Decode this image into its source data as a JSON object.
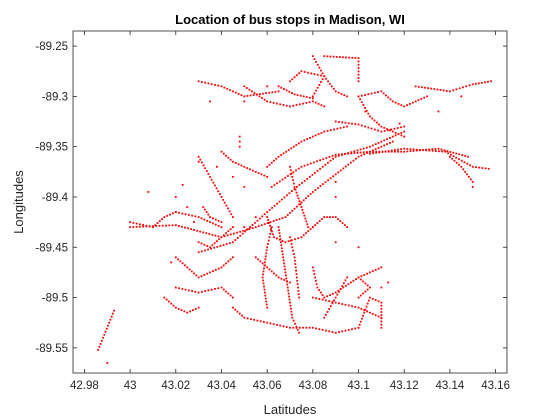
{
  "chart_data": {
    "type": "scatter",
    "title": "Location of bus stops in Madison, WI",
    "xlabel": "Latitudes",
    "ylabel": "Longitudes",
    "xlim": [
      42.975,
      43.165
    ],
    "ylim": [
      -89.575,
      -89.235
    ],
    "x_ticks": [
      42.98,
      43.0,
      43.02,
      43.04,
      43.06,
      43.08,
      43.1,
      43.12,
      43.14,
      43.16
    ],
    "x_tick_labels": [
      "42.98",
      "43",
      "43.02",
      "43.04",
      "43.06",
      "43.08",
      "43.1",
      "43.12",
      "43.14",
      "43.16"
    ],
    "y_ticks": [
      -89.25,
      -89.3,
      -89.35,
      -89.4,
      -89.45,
      -89.5,
      -89.55
    ],
    "y_tick_labels": [
      "-89.25",
      "-89.3",
      "-89.35",
      "-89.4",
      "-89.45",
      "-89.5",
      "-89.55"
    ],
    "grid": false,
    "marker_color": "#ff0000",
    "polylines": [
      {
        "x": [
          42.986,
          42.993
        ],
        "y": [
          -89.552,
          -89.513
        ]
      },
      {
        "x": [
          43.0,
          43.02,
          43.04,
          43.055,
          43.068,
          43.08,
          43.1,
          43.115
        ],
        "y": [
          -89.43,
          -89.428,
          -89.44,
          -89.43,
          -89.42,
          -89.395,
          -89.36,
          -89.345
        ]
      },
      {
        "x": [
          43.03,
          43.045,
          43.06,
          43.073,
          43.09,
          43.105,
          43.12
        ],
        "y": [
          -89.455,
          -89.445,
          -89.415,
          -89.39,
          -89.36,
          -89.35,
          -89.335
        ]
      },
      {
        "x": [
          43.062,
          43.075,
          43.09,
          43.105,
          43.12,
          43.135,
          43.148
        ],
        "y": [
          -89.39,
          -89.37,
          -89.358,
          -89.355,
          -89.355,
          -89.352,
          -89.36
        ]
      },
      {
        "x": [
          43.105,
          43.12,
          43.138,
          43.15,
          43.157
        ],
        "y": [
          -89.357,
          -89.352,
          -89.355,
          -89.37,
          -89.372
        ]
      },
      {
        "x": [
          43.14,
          43.145,
          43.15
        ],
        "y": [
          -89.36,
          -89.37,
          -89.385
        ]
      },
      {
        "x": [
          43.03,
          43.04,
          43.05,
          43.065
        ],
        "y": [
          -89.285,
          -89.29,
          -89.3,
          -89.295
        ]
      },
      {
        "x": [
          43.05,
          43.06,
          43.07,
          43.08,
          43.085
        ],
        "y": [
          -89.29,
          -89.305,
          -89.31,
          -89.305,
          -89.31
        ]
      },
      {
        "x": [
          43.07,
          43.075,
          43.085,
          43.09,
          43.095
        ],
        "y": [
          -89.285,
          -89.275,
          -89.28,
          -89.295,
          -89.3
        ]
      },
      {
        "x": [
          43.085,
          43.1,
          43.1
        ],
        "y": [
          -89.26,
          -89.262,
          -89.285
        ]
      },
      {
        "x": [
          43.08,
          43.085,
          43.08
        ],
        "y": [
          -89.26,
          -89.28,
          -89.3
        ]
      },
      {
        "x": [
          43.065,
          43.072,
          43.08
        ],
        "y": [
          -89.29,
          -89.298,
          -89.302
        ]
      },
      {
        "x": [
          43.1,
          43.11,
          43.115,
          43.12,
          43.13
        ],
        "y": [
          -89.3,
          -89.295,
          -89.305,
          -89.31,
          -89.3
        ]
      },
      {
        "x": [
          43.125,
          43.14,
          43.15,
          43.158
        ],
        "y": [
          -89.29,
          -89.295,
          -89.288,
          -89.285
        ]
      },
      {
        "x": [
          43.1,
          43.105,
          43.11,
          43.12
        ],
        "y": [
          -89.3,
          -89.32,
          -89.33,
          -89.34
        ]
      },
      {
        "x": [
          43.09,
          43.1,
          43.11,
          43.12
        ],
        "y": [
          -89.325,
          -89.328,
          -89.335,
          -89.33
        ]
      },
      {
        "x": [
          43.04,
          43.045,
          43.05,
          43.055,
          43.06
        ],
        "y": [
          -89.355,
          -89.365,
          -89.37,
          -89.375,
          -89.38
        ]
      },
      {
        "x": [
          43.03,
          43.035,
          43.04,
          43.045
        ],
        "y": [
          -89.36,
          -89.38,
          -89.4,
          -89.42
        ]
      },
      {
        "x": [
          43.06,
          43.065,
          43.075,
          43.085,
          43.095
        ],
        "y": [
          -89.37,
          -89.36,
          -89.345,
          -89.335,
          -89.33
        ]
      },
      {
        "x": [
          43.07,
          43.072,
          43.075,
          43.078
        ],
        "y": [
          -89.37,
          -89.39,
          -89.41,
          -89.43
        ]
      },
      {
        "x": [
          43.065,
          43.067,
          43.069,
          43.071,
          43.074
        ],
        "y": [
          -89.43,
          -89.46,
          -89.49,
          -89.52,
          -89.535
        ]
      },
      {
        "x": [
          43.06,
          43.063,
          43.068,
          43.075,
          43.08
        ],
        "y": [
          -89.42,
          -89.44,
          -89.445,
          -89.44,
          -89.43
        ]
      },
      {
        "x": [
          43.062,
          43.06,
          43.058,
          43.06
        ],
        "y": [
          -89.43,
          -89.45,
          -89.48,
          -89.51
        ]
      },
      {
        "x": [
          43.055,
          43.06,
          43.065,
          43.07
        ],
        "y": [
          -89.46,
          -89.47,
          -89.48,
          -89.485
        ]
      },
      {
        "x": [
          43.07,
          43.072,
          43.073,
          43.074
        ],
        "y": [
          -89.44,
          -89.46,
          -89.48,
          -89.5
        ]
      },
      {
        "x": [
          43.08,
          43.085,
          43.09,
          43.095
        ],
        "y": [
          -89.43,
          -89.42,
          -89.42,
          -89.43
        ]
      },
      {
        "x": [
          43.08,
          43.082,
          43.085,
          43.09,
          43.1,
          43.11
        ],
        "y": [
          -89.47,
          -89.49,
          -89.5,
          -89.495,
          -89.48,
          -89.47
        ]
      },
      {
        "x": [
          43.08,
          43.09,
          43.1,
          43.105,
          43.11
        ],
        "y": [
          -89.5,
          -89.505,
          -89.51,
          -89.515,
          -89.52
        ]
      },
      {
        "x": [
          43.045,
          43.05,
          43.06,
          43.07,
          43.08,
          43.09,
          43.1
        ],
        "y": [
          -89.51,
          -89.52,
          -89.525,
          -89.53,
          -89.53,
          -89.535,
          -89.53
        ]
      },
      {
        "x": [
          43.1,
          43.105,
          43.11,
          43.11
        ],
        "y": [
          -89.53,
          -89.5,
          -89.505,
          -89.53
        ]
      },
      {
        "x": [
          43.085,
          43.09,
          43.095
        ],
        "y": [
          -89.52,
          -89.5,
          -89.48
        ]
      },
      {
        "x": [
          43.1,
          43.105,
          43.1
        ],
        "y": [
          -89.48,
          -89.49,
          -89.5
        ]
      },
      {
        "x": [
          43.02,
          43.025,
          43.03,
          43.04,
          43.045
        ],
        "y": [
          -89.46,
          -89.47,
          -89.48,
          -89.47,
          -89.46
        ]
      },
      {
        "x": [
          43.02,
          43.03,
          43.04,
          43.045
        ],
        "y": [
          -89.49,
          -89.495,
          -89.49,
          -89.5
        ]
      },
      {
        "x": [
          43.015,
          43.02,
          43.025,
          43.03
        ],
        "y": [
          -89.5,
          -89.51,
          -89.515,
          -89.51
        ]
      },
      {
        "x": [
          43.03,
          43.035,
          43.04,
          43.045
        ],
        "y": [
          -89.445,
          -89.45,
          -89.44,
          -89.43
        ]
      },
      {
        "x": [
          43.02,
          43.03,
          43.04
        ],
        "y": [
          -89.415,
          -89.42,
          -89.43
        ]
      },
      {
        "x": [
          43.032,
          43.035,
          43.04
        ],
        "y": [
          -89.41,
          -89.42,
          -89.425
        ]
      },
      {
        "x": [
          43.0,
          43.01,
          43.015,
          43.02
        ],
        "y": [
          -89.425,
          -89.43,
          -89.42,
          -89.415
        ]
      }
    ],
    "points": [
      {
        "x": 42.99,
        "y": -89.565
      },
      {
        "x": 43.008,
        "y": -89.395
      },
      {
        "x": 43.018,
        "y": -89.465
      },
      {
        "x": 43.02,
        "y": -89.4
      },
      {
        "x": 43.023,
        "y": -89.388
      },
      {
        "x": 43.025,
        "y": -89.41
      },
      {
        "x": 43.028,
        "y": -89.425
      },
      {
        "x": 43.03,
        "y": -89.365
      },
      {
        "x": 43.038,
        "y": -89.37
      },
      {
        "x": 43.048,
        "y": -89.34
      },
      {
        "x": 43.048,
        "y": -89.345
      },
      {
        "x": 43.048,
        "y": -89.35
      },
      {
        "x": 43.045,
        "y": -89.38
      },
      {
        "x": 43.05,
        "y": -89.39
      },
      {
        "x": 43.055,
        "y": -89.42
      },
      {
        "x": 43.05,
        "y": -89.43
      },
      {
        "x": 43.035,
        "y": -89.305
      },
      {
        "x": 43.05,
        "y": -89.305
      },
      {
        "x": 43.06,
        "y": -89.29
      },
      {
        "x": 43.09,
        "y": -89.385
      },
      {
        "x": 43.09,
        "y": -89.4
      },
      {
        "x": 43.09,
        "y": -89.445
      },
      {
        "x": 43.1,
        "y": -89.45
      },
      {
        "x": 43.11,
        "y": -89.49
      },
      {
        "x": 43.113,
        "y": -89.485
      },
      {
        "x": 43.103,
        "y": -89.315
      },
      {
        "x": 43.118,
        "y": -89.327
      },
      {
        "x": 43.135,
        "y": -89.315
      },
      {
        "x": 43.145,
        "y": -89.3
      },
      {
        "x": 43.15,
        "y": -89.39
      }
    ]
  }
}
